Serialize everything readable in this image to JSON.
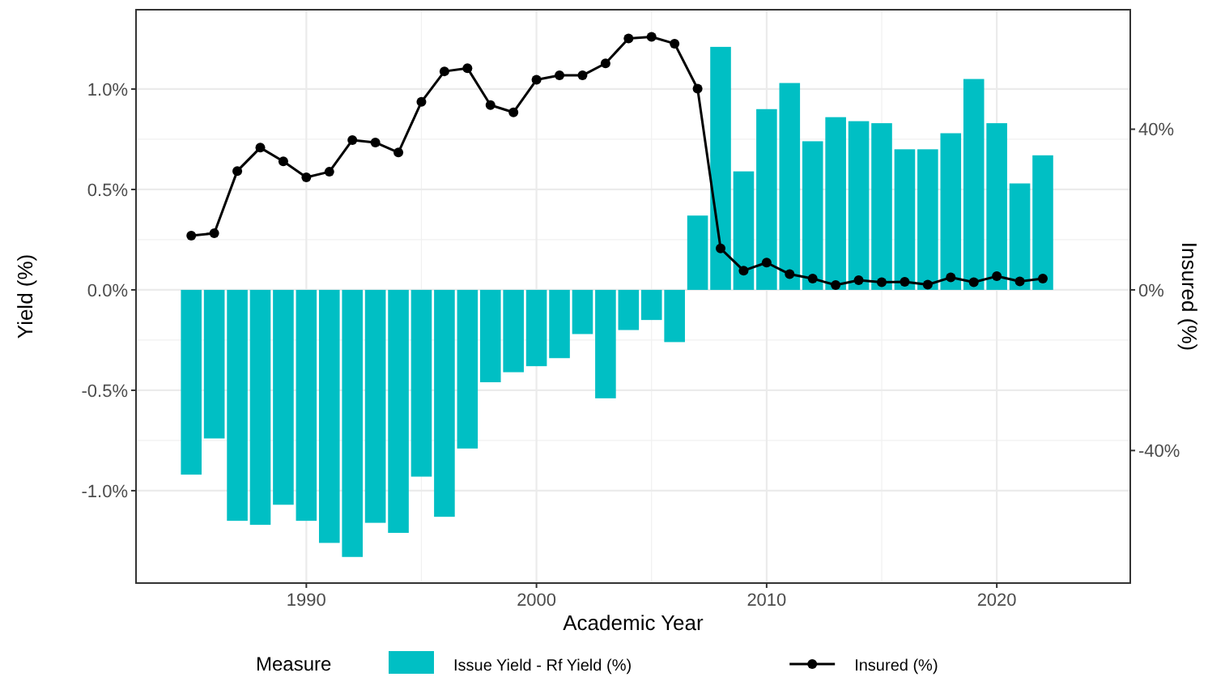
{
  "chart_data": {
    "type": "bar",
    "xlabel": "Academic Year",
    "ylabel": "Yield (%)",
    "y2label": "Insured (%)",
    "legend_title": "Measure",
    "legend": "bottom",
    "grid": true,
    "x": [
      1985,
      1986,
      1987,
      1988,
      1989,
      1990,
      1991,
      1992,
      1993,
      1994,
      1995,
      1996,
      1997,
      1998,
      1999,
      2000,
      2001,
      2002,
      2003,
      2004,
      2005,
      2006,
      2007,
      2008,
      2009,
      2010,
      2011,
      2012,
      2013,
      2014,
      2015,
      2016,
      2017,
      2018,
      2019,
      2020,
      2021,
      2022
    ],
    "series": [
      {
        "name": "Issue Yield - Rf Yield (%)",
        "color": "#00bfc4",
        "values": [
          -0.92,
          -0.74,
          -1.15,
          -1.17,
          -1.07,
          -1.15,
          -1.26,
          -1.33,
          -1.16,
          -1.21,
          -0.93,
          -1.13,
          -0.79,
          -0.46,
          -0.41,
          -0.38,
          -0.34,
          -0.22,
          -0.54,
          -0.2,
          -0.15,
          -0.26,
          0.37,
          1.21,
          0.59,
          0.9,
          1.03,
          0.74,
          0.86,
          0.84,
          0.83,
          0.7,
          0.7,
          0.78,
          1.05,
          0.83,
          0.53,
          0.67
        ]
      },
      {
        "name": "Insured (%)",
        "type": "line",
        "axis": "y2",
        "color": "#000000",
        "marker": "circle",
        "values": [
          13.5,
          14.1,
          29.6,
          35.4,
          32,
          28,
          29.4,
          37.3,
          36.7,
          34.2,
          46.8,
          54.4,
          55.2,
          46,
          44.2,
          52.3,
          53.4,
          53.4,
          56.4,
          62.6,
          63,
          61.3,
          50.1,
          10.3,
          4.8,
          6.8,
          3.9,
          2.8,
          1.2,
          2.4,
          1.9,
          2,
          1.3,
          3.1,
          1.9,
          3.4,
          2.1,
          2.8
        ]
      }
    ],
    "xlim": [
      1982.6,
      2025.8
    ],
    "xticks": [
      1990,
      2000,
      2010,
      2020
    ],
    "ylim": [
      -1.46,
      1.395
    ],
    "yticks": [
      {
        "value": -1,
        "label": "-1.0%"
      },
      {
        "value": -0.5,
        "label": "-0.5%"
      },
      {
        "value": 0,
        "label": "0.0%"
      },
      {
        "value": 0.5,
        "label": "0.5%"
      },
      {
        "value": 1,
        "label": "1.0%"
      }
    ],
    "y2lim": [
      -73,
      69.75
    ],
    "y2ticks": [
      {
        "value": -40,
        "label": "-40%"
      },
      {
        "value": 0,
        "label": "0%"
      },
      {
        "value": 40,
        "label": "40%"
      }
    ]
  }
}
